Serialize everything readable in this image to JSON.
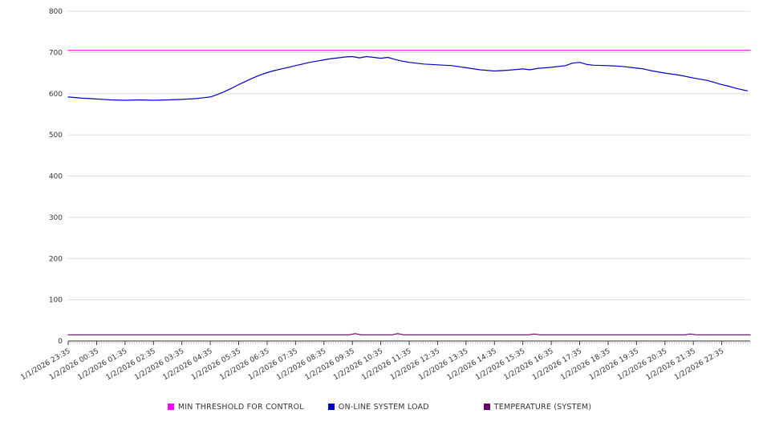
{
  "chart_data": {
    "type": "line",
    "title": "",
    "xlabel": "",
    "ylabel": "",
    "xlim": [
      0,
      24
    ],
    "ylim": [
      0,
      800
    ],
    "ytick_step": 100,
    "grid": "horizontal",
    "legend_position": "bottom",
    "minor_tick_minutes": 5,
    "x_tick_labels": [
      "1/1/2026 23:35",
      "1/2/2026 00:35",
      "1/2/2026 01:35",
      "1/2/2026 02:35",
      "1/2/2026 03:35",
      "1/2/2026 04:35",
      "1/2/2026 05:35",
      "1/2/2026 06:35",
      "1/2/2026 07:35",
      "1/2/2026 08:35",
      "1/2/2026 09:35",
      "1/2/2026 10:35",
      "1/2/2026 11:35",
      "1/2/2026 12:35",
      "1/2/2026 13:35",
      "1/2/2026 14:35",
      "1/2/2026 15:35",
      "1/2/2026 16:35",
      "1/2/2026 17:35",
      "1/2/2026 18:35",
      "1/2/2026 19:35",
      "1/2/2026 20:35",
      "1/2/2026 21:35",
      "1/2/2026 22:35"
    ],
    "y_tick_labels": [
      "0",
      "100",
      "200",
      "300",
      "400",
      "500",
      "600",
      "700",
      "800"
    ],
    "series": [
      {
        "name": "MIN THRESHOLD FOR CONTROL",
        "color": "#ff00ff",
        "x": [
          0,
          24
        ],
        "values": [
          705,
          705
        ]
      },
      {
        "name": "ON-LINE SYSTEM LOAD",
        "color": "#0000cc",
        "x": [
          0,
          0.5,
          1,
          1.5,
          2,
          2.5,
          3,
          3.5,
          4,
          4.5,
          5,
          5.25,
          5.5,
          5.75,
          6,
          6.25,
          6.5,
          6.75,
          7,
          7.25,
          7.5,
          7.75,
          8,
          8.25,
          8.5,
          8.75,
          9,
          9.25,
          9.5,
          9.75,
          10,
          10.25,
          10.5,
          10.75,
          11,
          11.25,
          11.5,
          11.75,
          12,
          12.5,
          13,
          13.5,
          14,
          14.5,
          15,
          15.5,
          16,
          16.25,
          16.5,
          17,
          17.5,
          17.75,
          18,
          18.25,
          18.5,
          19,
          19.5,
          20,
          20.25,
          20.5,
          21,
          21.5,
          22,
          22.5,
          23,
          23.25,
          23.5,
          23.75,
          23.9
        ],
        "values": [
          592,
          589,
          587,
          585,
          584,
          585,
          584,
          585,
          586,
          588,
          592,
          598,
          605,
          613,
          622,
          630,
          638,
          645,
          651,
          656,
          660,
          664,
          668,
          672,
          676,
          679,
          682,
          685,
          687,
          689,
          690,
          687,
          690,
          688,
          686,
          688,
          683,
          679,
          676,
          672,
          670,
          668,
          663,
          658,
          655,
          657,
          660,
          658,
          661,
          664,
          668,
          674,
          676,
          671,
          669,
          668,
          666,
          662,
          660,
          656,
          650,
          645,
          638,
          632,
          622,
          618,
          613,
          609,
          607
        ]
      },
      {
        "name": "TEMPERATURE (SYSTEM)",
        "color": "#660066",
        "x": [
          0,
          9.9,
          10.1,
          10.3,
          11.4,
          11.6,
          11.8,
          16.2,
          16.4,
          16.6,
          21.7,
          21.9,
          22.1,
          24
        ],
        "values": [
          15,
          15,
          18,
          15,
          15,
          18,
          15,
          15,
          17,
          15,
          15,
          17,
          15,
          15
        ]
      }
    ]
  }
}
